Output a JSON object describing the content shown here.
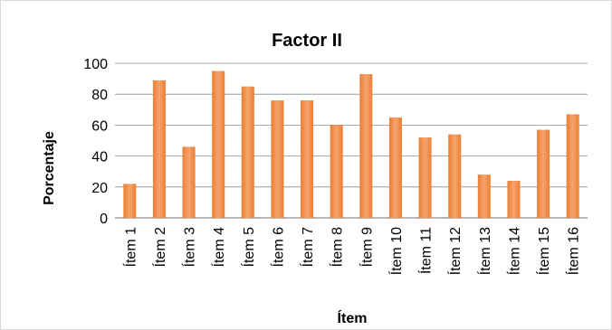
{
  "chart_data": {
    "type": "bar",
    "title": "Factor II",
    "xlabel": "Ítem",
    "ylabel": "Porcentaje",
    "categories": [
      "Ítem 1",
      "Ítem 2",
      "Ítem 3",
      "Ítem 4",
      "Ítem 5",
      "Ítem 6",
      "Ítem 7",
      "Ítem 8",
      "Ítem 9",
      "Ítem 10",
      "Ítem 11",
      "Ítem 12",
      "Ítem 13",
      "Ítem 14",
      "Ítem 15",
      "Ítem 16"
    ],
    "values": [
      22,
      89,
      46,
      95,
      85,
      76,
      76,
      60,
      93,
      65,
      52,
      54,
      28,
      24,
      57,
      67
    ],
    "ylim": [
      0,
      100
    ],
    "yticks": [
      0,
      20,
      40,
      60,
      80,
      100
    ],
    "grid": true,
    "legend": "none",
    "bar_color": "#ED7D31",
    "bar_highlight": "#F4A46E",
    "grid_color": "#8c8c8c"
  }
}
